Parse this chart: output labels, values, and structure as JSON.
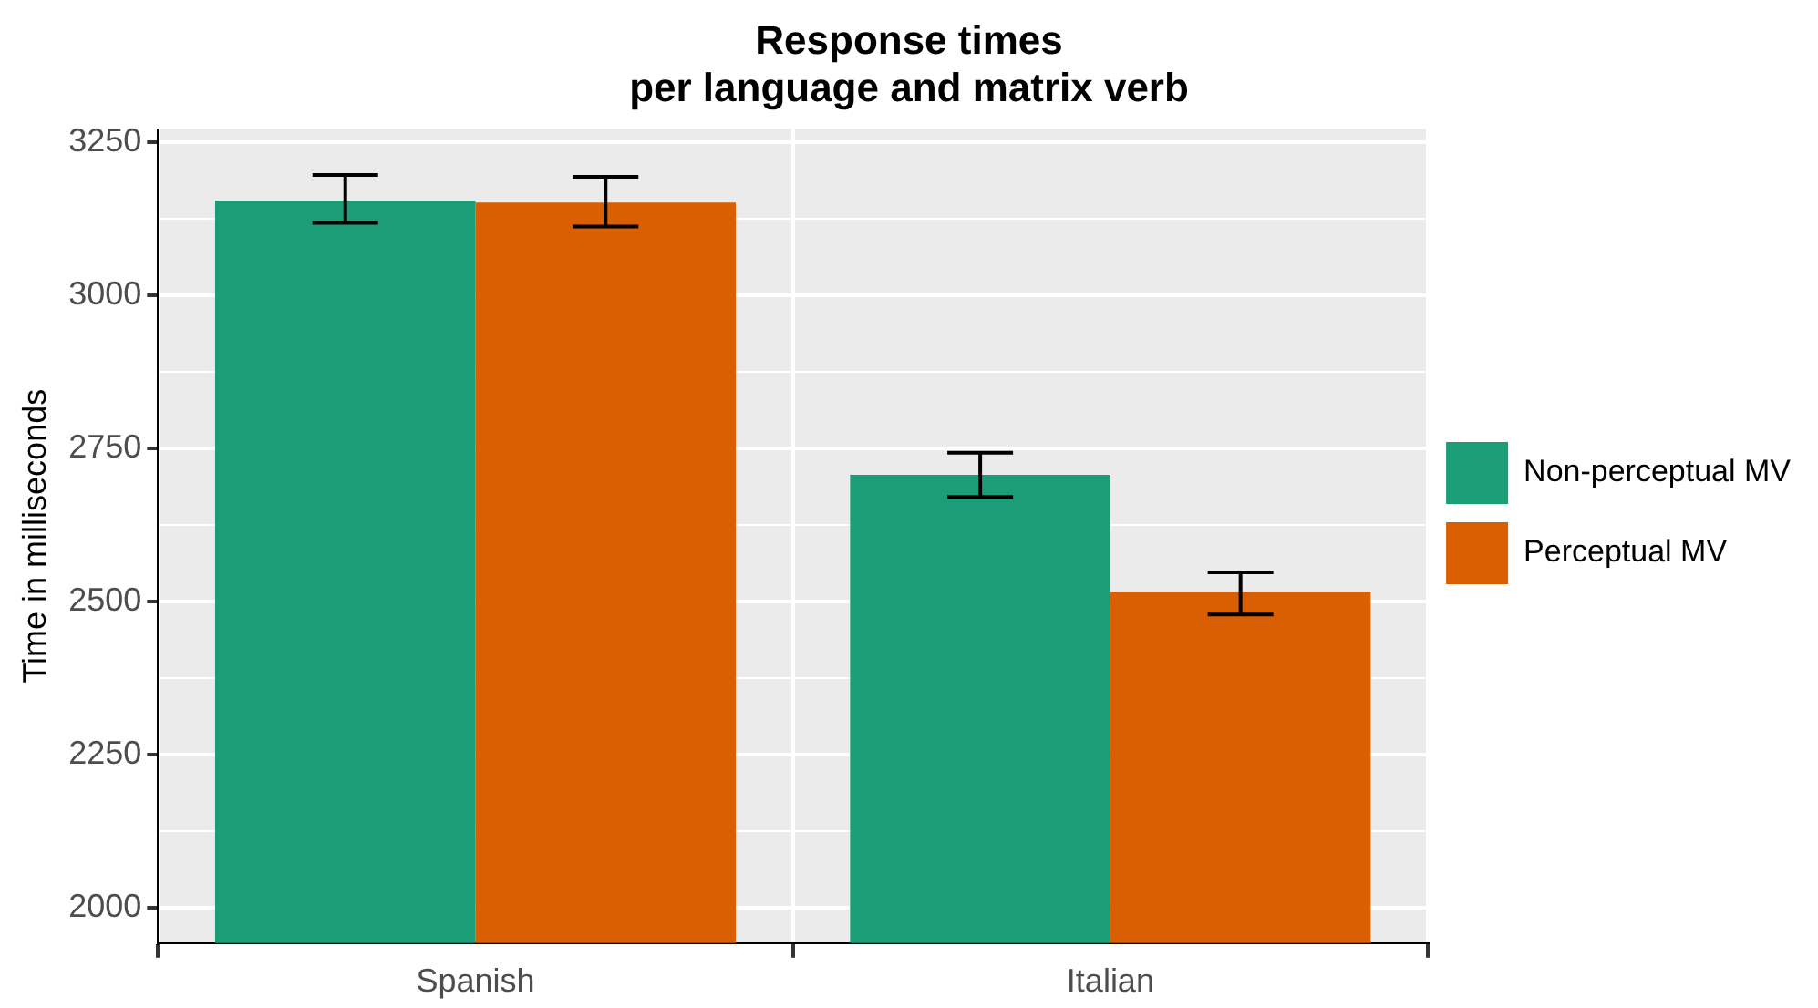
{
  "chart_data": {
    "type": "bar",
    "title": "Response times\nper language and matrix verb",
    "ylabel": "Time in milliseconds",
    "categories": [
      "Spanish",
      "Italian"
    ],
    "series": [
      {
        "name": "Non-perceptual MV",
        "color": "#1b9e77",
        "values": [
          3154,
          2707
        ],
        "errors": [
          [
            3118,
            3196
          ],
          [
            2671,
            2743
          ]
        ]
      },
      {
        "name": "Perceptual MV",
        "color": "#d95f02",
        "values": [
          3151,
          2515
        ],
        "errors": [
          [
            3112,
            3193
          ],
          [
            2479,
            2548
          ]
        ]
      }
    ],
    "ylim": [
      1943,
      3271
    ],
    "yticks": [
      2000,
      {
        "value": 2125,
        "label": null
      },
      2250,
      {
        "value": 2375,
        "label": null
      },
      2500,
      {
        "value": 2625,
        "label": null
      },
      2750,
      {
        "value": 2875,
        "label": null
      },
      3000,
      {
        "value": 3125,
        "label": null
      },
      3250
    ],
    "grid": true,
    "legend": "right"
  }
}
